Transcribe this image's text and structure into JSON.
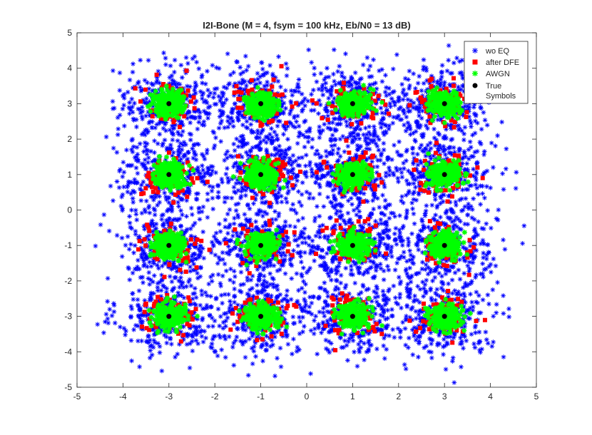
{
  "chart_data": {
    "type": "scatter",
    "title": "I2I-Bone (M = 4, fsym = 100 kHz, Eb/N0 = 13 dB)",
    "xlabel": "",
    "ylabel": "",
    "xlim": [
      -5,
      5
    ],
    "ylim": [
      -5,
      5
    ],
    "xticks": [
      -5,
      -4,
      -3,
      -2,
      -1,
      0,
      1,
      2,
      3,
      4,
      5
    ],
    "yticks": [
      -5,
      -4,
      -3,
      -2,
      -1,
      0,
      1,
      2,
      3,
      4,
      5
    ],
    "grid": false,
    "legend_position": "top-right",
    "constellation_levels": [
      -3,
      -1,
      1,
      3
    ],
    "series": [
      {
        "name": "wo EQ",
        "marker": "asterisk",
        "color": "#0000ff",
        "spread_sigma": 0.55,
        "points_per_symbol": 320
      },
      {
        "name": "after DFE",
        "marker": "square",
        "color": "#ff0000",
        "spread_sigma": 0.3,
        "points_per_symbol": 70
      },
      {
        "name": "AWGN",
        "marker": "asterisk",
        "color": "#00ff00",
        "spread_sigma": 0.17,
        "points_per_symbol": 260
      },
      {
        "name": "True Symbols",
        "marker": "dot",
        "color": "#000000",
        "points": [
          [
            -3,
            3
          ],
          [
            -1,
            3
          ],
          [
            1,
            3
          ],
          [
            3,
            3
          ],
          [
            -3,
            1
          ],
          [
            -1,
            1
          ],
          [
            1,
            1
          ],
          [
            3,
            1
          ],
          [
            -3,
            -1
          ],
          [
            -1,
            -1
          ],
          [
            1,
            -1
          ],
          [
            3,
            -1
          ],
          [
            -3,
            -3
          ],
          [
            -1,
            -3
          ],
          [
            1,
            -3
          ],
          [
            3,
            -3
          ]
        ]
      }
    ]
  },
  "legend": {
    "items": [
      {
        "label": "wo EQ"
      },
      {
        "label": "after DFE"
      },
      {
        "label": "AWGN"
      },
      {
        "label_line1": "True",
        "label_line2": "Symbols"
      }
    ]
  }
}
